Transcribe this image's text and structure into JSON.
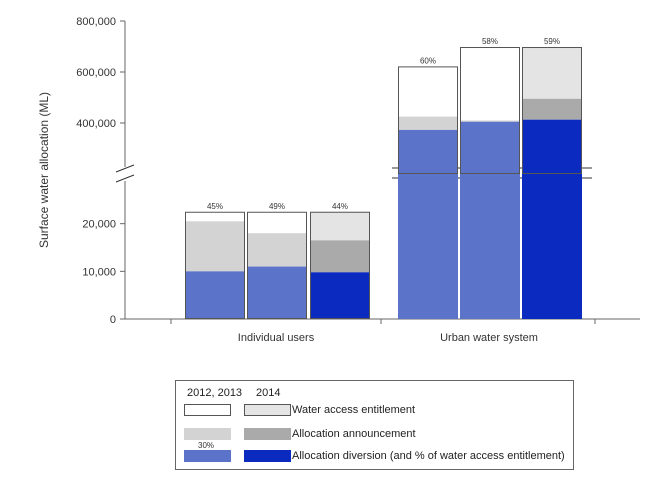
{
  "chart_data": {
    "type": "bar",
    "ylabel": "Surface water allocation (ML)",
    "groups": [
      "Individual users",
      "Urban water system"
    ],
    "series_years": [
      "2012",
      "2013",
      "2014"
    ],
    "lower_axis": {
      "range": [
        0,
        30000
      ],
      "ticks": [
        "0",
        "10,000",
        "20,000"
      ],
      "tick_values": [
        0,
        10000,
        20000
      ]
    },
    "upper_axis": {
      "range": [
        200000,
        800000
      ],
      "ticks": [
        "400,000",
        "600,000",
        "800,000"
      ],
      "tick_values": [
        400000,
        600000,
        800000
      ]
    },
    "bars": [
      {
        "group": "Individual users",
        "year": "2012",
        "entitlement": 22500,
        "announcement": 20500,
        "diversion": 10000,
        "pct_label": "45%"
      },
      {
        "group": "Individual users",
        "year": "2013",
        "entitlement": 22500,
        "announcement": 18000,
        "diversion": 11000,
        "pct_label": "49%"
      },
      {
        "group": "Individual users",
        "year": "2014",
        "entitlement": 22500,
        "announcement": 16500,
        "diversion": 9800,
        "pct_label": "44%"
      },
      {
        "group": "Urban water system",
        "year": "2012",
        "entitlement": 622000,
        "announcement": 425000,
        "diversion": 373000,
        "pct_label": "60%"
      },
      {
        "group": "Urban water system",
        "year": "2013",
        "entitlement": 698000,
        "announcement": 410000,
        "diversion": 405000,
        "pct_label": "58%"
      },
      {
        "group": "Urban water system",
        "year": "2014",
        "entitlement": 698000,
        "announcement": 495000,
        "diversion": 413000,
        "pct_label": "59%"
      }
    ]
  },
  "legend": {
    "header_old": "2012, 2013",
    "header_new": "2014",
    "entitlement_label": "Water access entitlement",
    "announcement_label": "Allocation announcement",
    "diversion_label": "Allocation diversion (and % of water access entitlement)",
    "example_pct": "30%"
  },
  "colors": {
    "entitlement_old": "#ffffff",
    "entitlement_new": "#e4e4e4",
    "announcement_old": "#d3d3d3",
    "announcement_new": "#aaaaaa",
    "diversion_old": "#5b73c9",
    "diversion_new": "#0a2ac0"
  }
}
